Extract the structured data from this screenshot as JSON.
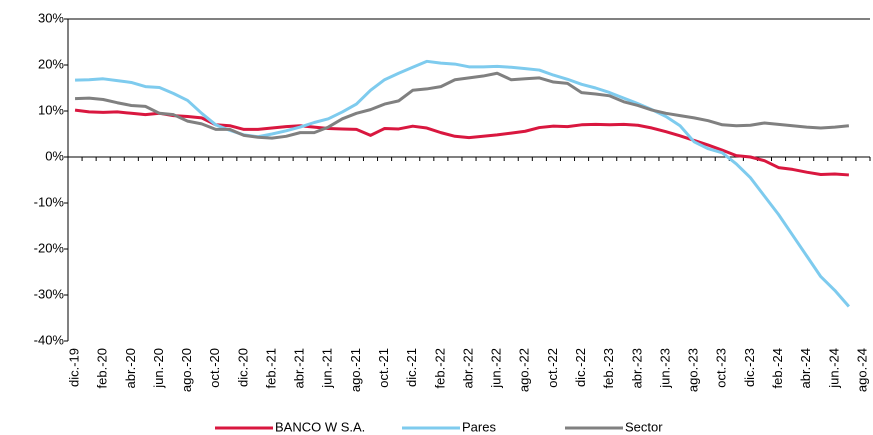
{
  "chart_data": {
    "type": "line",
    "categories": [
      "dic.-19",
      null,
      "feb.-20",
      null,
      "abr.-20",
      null,
      "jun.-20",
      null,
      "ago.-20",
      null,
      "oct.-20",
      null,
      "dic.-20",
      null,
      "feb.-21",
      null,
      "abr.-21",
      null,
      "jun.-21",
      null,
      "ago.-21",
      null,
      "oct.-21",
      null,
      "dic.-21",
      null,
      "feb.-22",
      null,
      "abr.-22",
      null,
      "jun.-22",
      null,
      "ago.-22",
      null,
      "oct.-22",
      null,
      "dic.-22",
      null,
      "feb.-23",
      null,
      "abr.-23",
      null,
      "jun.-23",
      null,
      "ago.-23",
      null,
      "oct.-23",
      null,
      "dic.-23",
      null,
      "feb.-24",
      null,
      "abr.-24",
      null,
      "jun.-24",
      null,
      "ago.-24"
    ],
    "series": [
      {
        "name": "BANCO W S.A.",
        "color": "#d9173f",
        "values": [
          10.2,
          9.8,
          9.7,
          9.8,
          9.5,
          9.2,
          9.5,
          9.0,
          8.8,
          8.5,
          7.0,
          6.8,
          6.0,
          6.0,
          6.3,
          6.6,
          6.8,
          6.5,
          6.2,
          6.1,
          6.0,
          4.7,
          6.2,
          6.1,
          6.7,
          6.3,
          5.3,
          4.5,
          4.2,
          4.5,
          4.8,
          5.2,
          5.6,
          6.4,
          6.7,
          6.6,
          7.0,
          7.1,
          7.0,
          7.1,
          6.9,
          6.3,
          5.5,
          4.6,
          3.6,
          2.6,
          1.5,
          0.3,
          0.0,
          -0.8,
          -2.3,
          -2.7,
          -3.3,
          -3.8,
          -3.7,
          -3.9,
          null
        ]
      },
      {
        "name": "Pares",
        "color": "#7ecbee",
        "values": [
          16.7,
          16.8,
          17.0,
          16.6,
          16.2,
          15.3,
          15.1,
          13.8,
          12.3,
          9.5,
          7.0,
          5.8,
          4.8,
          4.4,
          5.0,
          5.7,
          6.5,
          7.5,
          8.3,
          9.8,
          11.5,
          14.5,
          16.8,
          18.2,
          19.5,
          20.8,
          20.4,
          20.2,
          19.6,
          19.6,
          19.7,
          19.5,
          19.2,
          18.9,
          17.8,
          16.9,
          15.8,
          15.0,
          14.0,
          12.8,
          11.6,
          10.3,
          8.8,
          6.8,
          3.3,
          1.8,
          0.9,
          -1.5,
          -4.5,
          -8.5,
          -12.5,
          -17.0,
          -21.5,
          -26.0,
          -29.0,
          -32.5,
          null
        ]
      },
      {
        "name": "Sector",
        "color": "#808080",
        "values": [
          12.7,
          12.8,
          12.5,
          11.8,
          11.2,
          11.0,
          9.5,
          9.2,
          7.8,
          7.2,
          6.0,
          6.0,
          4.7,
          4.3,
          4.1,
          4.5,
          5.3,
          5.3,
          6.5,
          8.3,
          9.5,
          10.3,
          11.5,
          12.2,
          14.5,
          14.8,
          15.3,
          16.8,
          17.2,
          17.6,
          18.2,
          16.8,
          17.0,
          17.2,
          16.3,
          16.0,
          14.0,
          13.7,
          13.3,
          12.0,
          11.2,
          10.2,
          9.5,
          9.0,
          8.5,
          7.9,
          7.0,
          6.8,
          6.9,
          7.4,
          7.1,
          6.8,
          6.5,
          6.3,
          6.5,
          6.8,
          null
        ]
      }
    ],
    "ylim": [
      -40,
      30
    ],
    "yticks": [
      {
        "value": -40,
        "label": "-40%"
      },
      {
        "value": -30,
        "label": "-30%"
      },
      {
        "value": -20,
        "label": "-20%"
      },
      {
        "value": -10,
        "label": "-10%"
      },
      {
        "value": 0,
        "label": "0%"
      },
      {
        "value": 10,
        "label": "10%"
      },
      {
        "value": 20,
        "label": "20%"
      },
      {
        "value": 30,
        "label": "30%"
      }
    ],
    "grid": false,
    "legend": "bottom"
  }
}
